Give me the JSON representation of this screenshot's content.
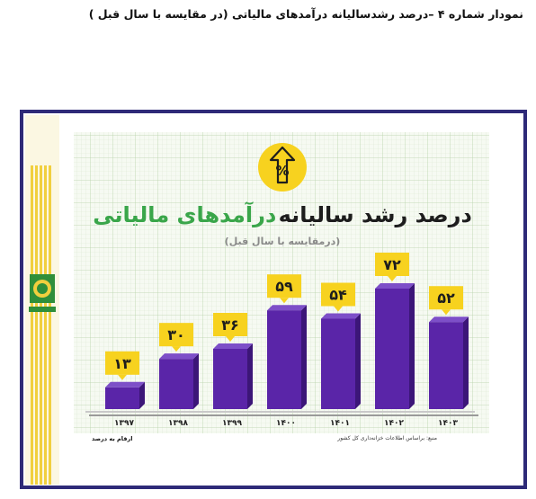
{
  "caption": "نمودار شماره ۴ –درصد رشدسالیانه درآمدهای مالیاتی (در مقایسه با سال قبل )",
  "source": "منبع: براساس اطلاعات خزانه‌داری کل کشور",
  "unit_note": "ارقام به درصد",
  "emblem_text": "سازمان امور مالیاتی",
  "badge_text": "%",
  "colors": {
    "bar_front": "#5a25a8",
    "bar_side": "#3c1678",
    "bar_top": "#7d4fc8",
    "label_box": "#f7d21f",
    "title_dark": "#1d1d1d",
    "title_green": "#3aa64a",
    "frame": "#2e2a78",
    "grid": "#cfe0c6"
  },
  "chart_data": {
    "type": "bar",
    "title_dark": "درصد رشد سالیانه",
    "title_green": "درآمدهای مالیاتی",
    "subtitle": "(درمقایسه با سال قبل)",
    "categories": [
      "۱۳۹۷",
      "۱۳۹۸",
      "۱۳۹۹",
      "۱۴۰۰",
      "۱۴۰۱",
      "۱۴۰۲",
      "۱۴۰۳"
    ],
    "values": [
      13,
      30,
      36,
      59,
      54,
      72,
      52
    ],
    "value_labels": [
      "۱۳",
      "۳۰",
      "۳۶",
      "۵۹",
      "۵۴",
      "۷۲",
      "۵۲"
    ],
    "ylim": [
      0,
      80
    ],
    "grid": true,
    "legend": "none"
  }
}
